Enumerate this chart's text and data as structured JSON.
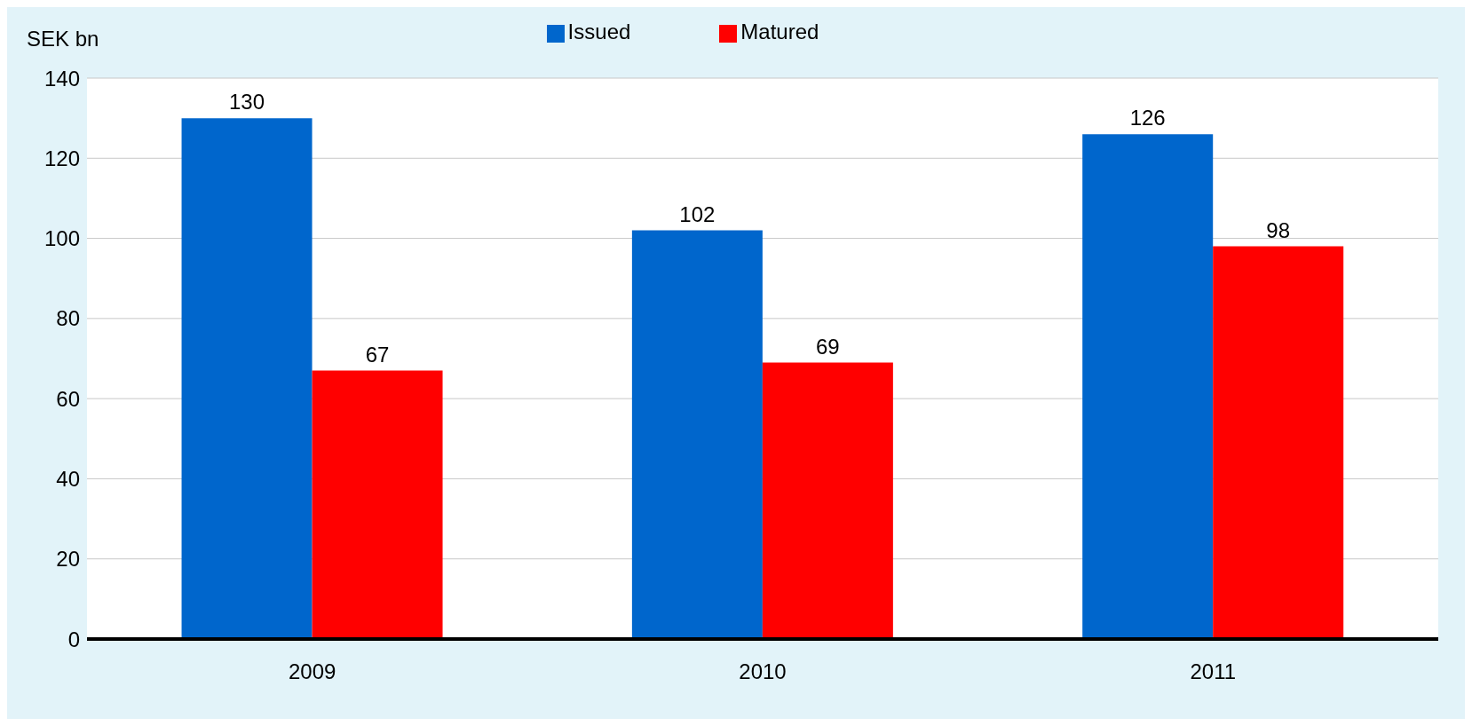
{
  "chart_data": {
    "type": "bar",
    "ylabel": "SEK bn",
    "categories": [
      "2009",
      "2010",
      "2011"
    ],
    "series": [
      {
        "name": "Issued",
        "color": "#0066cc",
        "values": [
          130,
          102,
          126
        ]
      },
      {
        "name": "Matured",
        "color": "#ff0000",
        "values": [
          67,
          69,
          98
        ]
      }
    ],
    "ylim": [
      0,
      140
    ],
    "yticks": [
      0,
      20,
      40,
      60,
      80,
      100,
      120,
      140
    ],
    "grid": "y",
    "legend": "top",
    "data_labels": true
  }
}
